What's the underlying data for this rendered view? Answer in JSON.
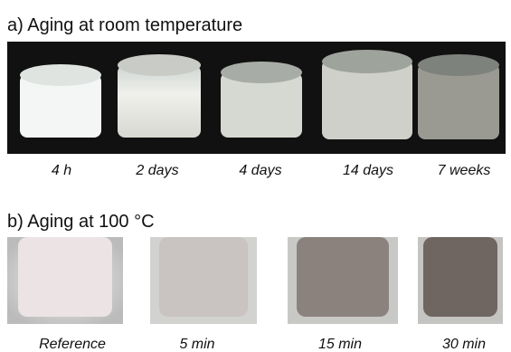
{
  "panel_a": {
    "title": "a) Aging at room temperature",
    "labels": [
      "4 h",
      "2 days",
      "4 days",
      "14 days",
      "7 weeks"
    ]
  },
  "panel_b": {
    "title": "b) Aging at 100 °C",
    "labels": [
      "Reference",
      "5 min",
      "15 min",
      "30 min"
    ]
  }
}
